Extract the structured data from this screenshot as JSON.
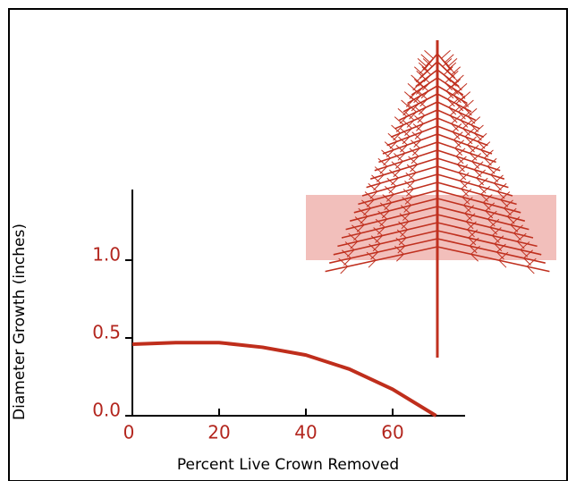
{
  "chart_data": {
    "type": "line",
    "x_label": "Percent Live Crown Removed",
    "y_label": "Diameter Growth (inches)",
    "x": [
      0,
      10,
      20,
      30,
      40,
      50,
      60,
      70
    ],
    "series": [
      {
        "name": "Diameter growth",
        "color": "#bf2e1c",
        "values": [
          0.46,
          0.47,
          0.47,
          0.44,
          0.39,
          0.3,
          0.17,
          0.0
        ]
      }
    ],
    "xlim": [
      0,
      77
    ],
    "ylim": [
      0,
      1.45
    ],
    "xticks": [
      0,
      20,
      40,
      60
    ],
    "yticks": [
      {
        "value": 0,
        "label": "0.0"
      },
      {
        "value": 0.5,
        "label": "0.5"
      },
      {
        "value": 1,
        "label": "1.0"
      }
    ]
  }
}
